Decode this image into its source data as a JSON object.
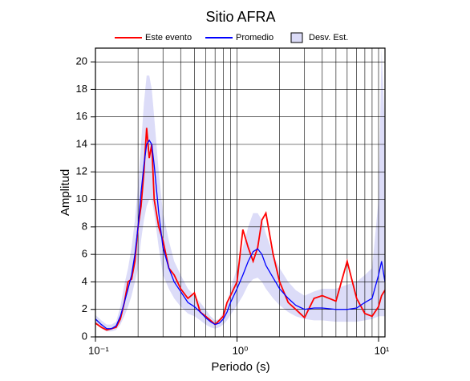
{
  "chart_data": {
    "type": "line",
    "title": "Sitio AFRA",
    "x_label": "Periodo (s)",
    "y_label": "Amplitud",
    "x_scale": "log",
    "xlim": [
      0.1,
      11.1
    ],
    "ylim": [
      0,
      21
    ],
    "xticks": [
      {
        "value": 0.1,
        "label": "10⁻¹"
      },
      {
        "value": 1,
        "label": "10⁰"
      },
      {
        "value": 10,
        "label": "10¹"
      }
    ],
    "xminor": [
      0.2,
      0.3,
      0.4,
      0.5,
      0.6,
      0.7,
      0.8,
      0.9,
      2,
      3,
      4,
      5,
      6,
      7,
      8,
      9
    ],
    "yticks": [
      0,
      2,
      4,
      6,
      8,
      10,
      12,
      14,
      16,
      18,
      20
    ],
    "grid": true,
    "x": [
      0.1,
      0.11,
      0.12,
      0.13,
      0.14,
      0.15,
      0.16,
      0.17,
      0.18,
      0.19,
      0.2,
      0.21,
      0.22,
      0.23,
      0.24,
      0.25,
      0.26,
      0.28,
      0.3,
      0.33,
      0.36,
      0.4,
      0.45,
      0.5,
      0.55,
      0.6,
      0.65,
      0.7,
      0.75,
      0.8,
      0.85,
      0.9,
      1.0,
      1.1,
      1.2,
      1.3,
      1.4,
      1.5,
      1.6,
      1.8,
      2.0,
      2.3,
      2.6,
      3,
      3.5,
      4,
      5,
      6,
      7,
      8,
      9,
      10,
      10.5,
      11.1
    ],
    "band": {
      "name": "Desv. Est.",
      "color": "#dcdcf8",
      "upper": [
        1.6,
        1.2,
        0.9,
        0.9,
        1.1,
        2.2,
        3.8,
        5,
        6.5,
        8.5,
        11,
        14,
        17,
        19,
        19,
        18,
        16,
        12,
        9,
        7,
        5.5,
        4.5,
        3.5,
        3,
        2.5,
        2,
        1.5,
        1.2,
        1.3,
        1.8,
        2.5,
        3.5,
        5,
        6.5,
        8,
        9,
        9,
        8.5,
        7.5,
        6,
        5,
        4,
        3.4,
        3,
        3.3,
        3.5,
        3.5,
        3.8,
        4,
        4.5,
        5,
        10,
        21,
        15
      ],
      "lower": [
        1.0,
        0.6,
        0.4,
        0.4,
        0.5,
        0.9,
        1.5,
        2.2,
        3,
        4,
        5,
        7,
        8.5,
        9.5,
        10,
        10,
        9,
        6.5,
        4.5,
        3.5,
        2.8,
        2.2,
        1.7,
        1.5,
        1.2,
        0.9,
        0.7,
        0.6,
        0.7,
        0.9,
        1.2,
        1.6,
        2.3,
        3,
        3.8,
        4.2,
        4.3,
        4,
        3.5,
        2.8,
        2.3,
        1.8,
        1.5,
        1.3,
        1.2,
        1.2,
        1.1,
        1.1,
        1.1,
        1.2,
        1.3,
        1.5,
        1.5,
        1.5
      ]
    },
    "series": [
      {
        "name": "Este evento",
        "color": "#ff0000",
        "values": [
          1.0,
          0.7,
          0.5,
          0.6,
          0.7,
          1.3,
          2.5,
          4,
          4.2,
          5.5,
          8,
          9.5,
          12,
          15.2,
          13,
          14,
          10,
          8,
          7,
          5,
          4.5,
          3.5,
          2.8,
          3.2,
          1.8,
          1.5,
          1.2,
          0.9,
          1.2,
          1.5,
          2.5,
          3,
          4,
          7.8,
          6.5,
          5.5,
          6.5,
          8.5,
          9,
          6,
          4,
          2.5,
          2,
          1.4,
          2.8,
          3,
          2.6,
          5.5,
          2.8,
          1.7,
          1.5,
          2.2,
          3.0,
          3.4
        ]
      },
      {
        "name": "Promedio",
        "color": "#0000ff",
        "values": [
          1.3,
          0.9,
          0.6,
          0.6,
          0.8,
          1.5,
          2.5,
          3.5,
          4.5,
          6,
          8,
          10.5,
          12.5,
          14,
          14.3,
          14,
          12.5,
          9,
          6.5,
          5,
          4,
          3.3,
          2.5,
          2.2,
          1.8,
          1.4,
          1.1,
          0.9,
          1.0,
          1.3,
          1.8,
          2.5,
          3.5,
          4.5,
          5.5,
          6.2,
          6.4,
          6.0,
          5.2,
          4.3,
          3.5,
          2.8,
          2.3,
          2.0,
          2.1,
          2.1,
          2.0,
          2.0,
          2.1,
          2.5,
          2.8,
          4.5,
          5.5,
          4
        ]
      }
    ]
  }
}
